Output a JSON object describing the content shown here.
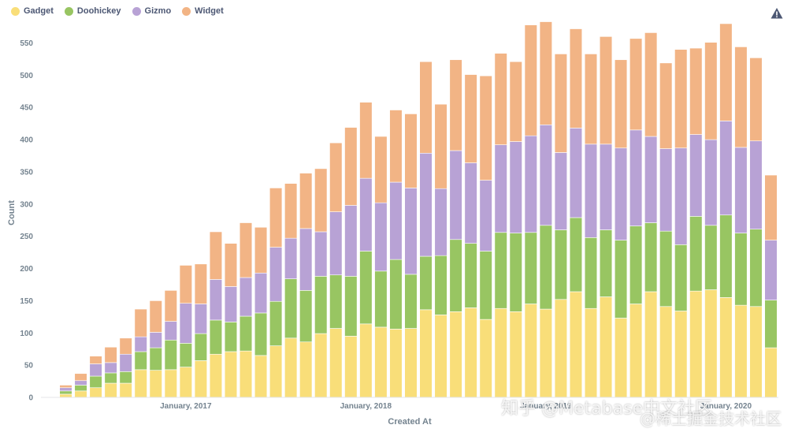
{
  "legend": {
    "items": [
      {
        "label": "Gadget",
        "color": "#f9de79"
      },
      {
        "label": "Doohickey",
        "color": "#98c562"
      },
      {
        "label": "Gizmo",
        "color": "#b8a2d5"
      },
      {
        "label": "Widget",
        "color": "#f2b485"
      }
    ]
  },
  "warning_icon": "warning-triangle-icon",
  "watermark": {
    "line1": "知乎 @Metabase中文社区",
    "line2": "@稀土掘金技术社区"
  },
  "chart_data": {
    "type": "bar",
    "stacked": true,
    "xlabel": "Created At",
    "ylabel": "Count",
    "ylim": [
      0,
      580
    ],
    "yticks": [
      0,
      50,
      100,
      150,
      200,
      250,
      300,
      350,
      400,
      450,
      500,
      550
    ],
    "x_tick_labels": [
      {
        "label": "January, 2017",
        "index": 8
      },
      {
        "label": "January, 2018",
        "index": 20
      },
      {
        "label": "January, 2019",
        "index": 32
      },
      {
        "label": "January, 2020",
        "index": 44
      }
    ],
    "grid": false,
    "legend_position": "top-left",
    "series": [
      {
        "name": "Gadget",
        "color": "#f9de79",
        "values": [
          5,
          10,
          15,
          22,
          22,
          43,
          42,
          43,
          47,
          57,
          67,
          71,
          72,
          65,
          80,
          92,
          86,
          99,
          107,
          95,
          114,
          109,
          106,
          107,
          136,
          128,
          133,
          139,
          121,
          138,
          133,
          145,
          137,
          152,
          164,
          138,
          156,
          123,
          145,
          164,
          141,
          134,
          165,
          167,
          155,
          143,
          141,
          77
        ]
      },
      {
        "name": "Doohickey",
        "color": "#98c562",
        "values": [
          5,
          9,
          18,
          16,
          18,
          28,
          35,
          46,
          37,
          42,
          53,
          46,
          54,
          66,
          69,
          92,
          80,
          89,
          83,
          93,
          113,
          87,
          108,
          84,
          83,
          92,
          112,
          100,
          106,
          118,
          122,
          111,
          130,
          108,
          115,
          110,
          104,
          121,
          121,
          107,
          117,
          103,
          116,
          100,
          128,
          112,
          120,
          74
        ]
      },
      {
        "name": "Gizmo",
        "color": "#b8a2d5",
        "values": [
          5,
          7,
          19,
          16,
          27,
          23,
          24,
          29,
          62,
          46,
          63,
          55,
          60,
          62,
          84,
          63,
          96,
          69,
          98,
          110,
          113,
          106,
          120,
          134,
          160,
          104,
          138,
          125,
          110,
          136,
          142,
          150,
          156,
          120,
          139,
          145,
          133,
          143,
          149,
          134,
          128,
          150,
          127,
          133,
          146,
          133,
          137,
          93
        ]
      },
      {
        "name": "Widget",
        "color": "#f2b485",
        "values": [
          4,
          11,
          12,
          24,
          25,
          43,
          49,
          48,
          59,
          62,
          74,
          67,
          85,
          71,
          92,
          85,
          86,
          98,
          107,
          121,
          118,
          103,
          112,
          115,
          142,
          131,
          141,
          137,
          162,
          142,
          124,
          172,
          160,
          153,
          154,
          140,
          167,
          137,
          142,
          161,
          133,
          153,
          134,
          151,
          151,
          156,
          129,
          101
        ]
      }
    ]
  }
}
